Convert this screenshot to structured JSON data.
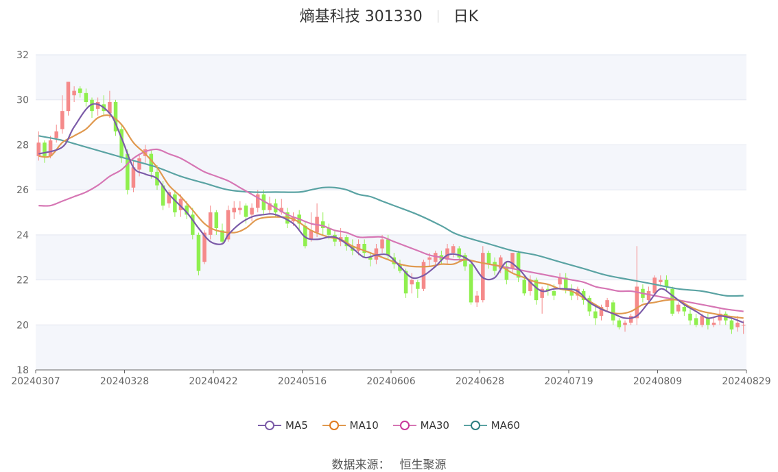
{
  "title": {
    "name": "熵基科技 301330",
    "period": "日K"
  },
  "source": {
    "label": "数据来源：",
    "value": "恒生聚源"
  },
  "colors": {
    "up": "#f58a8a",
    "down": "#8fef4e",
    "ma5": "#7b5ba8",
    "ma10": "#e0994f",
    "ma30": "#d676b4",
    "ma60": "#5aa3a3"
  },
  "chart_data": {
    "type": "candlestick",
    "title": "熵基科技 301330 日K",
    "ylim": [
      18,
      32
    ],
    "yticks": [
      18,
      20,
      22,
      24,
      26,
      28,
      30,
      32
    ],
    "xtick_labels": [
      "20240307",
      "20240328",
      "20240422",
      "20240516",
      "20240606",
      "20240628",
      "20240719",
      "20240809",
      "20240829"
    ],
    "legend": [
      "MA5",
      "MA10",
      "MA30",
      "MA60"
    ],
    "legend_position": "bottom",
    "grid": true,
    "bar_count": 120,
    "candles": [
      [
        27.5,
        28.1,
        27.3,
        28.6
      ],
      [
        28.1,
        27.5,
        27.2,
        28.2
      ],
      [
        27.5,
        28.2,
        27.4,
        28.4
      ],
      [
        28.3,
        28.6,
        28.1,
        28.9
      ],
      [
        28.7,
        29.5,
        28.5,
        30.2
      ],
      [
        29.5,
        30.8,
        29.3,
        30.8
      ],
      [
        30.2,
        30.4,
        29.9,
        30.6
      ],
      [
        30.5,
        30.3,
        30.1,
        30.6
      ],
      [
        30.3,
        29.9,
        29.7,
        30.5
      ],
      [
        30.0,
        29.5,
        29.2,
        30.1
      ],
      [
        29.6,
        29.9,
        29.3,
        30.1
      ],
      [
        29.8,
        29.5,
        29.3,
        30.2
      ],
      [
        29.4,
        29.9,
        29.2,
        30.4
      ],
      [
        29.9,
        28.6,
        28.4,
        30.0
      ],
      [
        28.7,
        27.4,
        27.2,
        28.9
      ],
      [
        27.6,
        26.0,
        25.8,
        27.8
      ],
      [
        26.1,
        27.0,
        25.9,
        27.3
      ],
      [
        26.9,
        27.4,
        26.6,
        27.6
      ],
      [
        27.5,
        27.8,
        27.2,
        28.0
      ],
      [
        27.6,
        26.8,
        26.5,
        27.8
      ],
      [
        26.8,
        26.2,
        26.0,
        27.1
      ],
      [
        26.2,
        25.3,
        25.1,
        26.4
      ],
      [
        25.4,
        25.9,
        25.2,
        26.0
      ],
      [
        25.8,
        25.0,
        24.8,
        26.0
      ],
      [
        25.1,
        25.6,
        24.8,
        25.8
      ],
      [
        25.3,
        24.9,
        24.7,
        25.5
      ],
      [
        24.9,
        24.0,
        23.8,
        25.2
      ],
      [
        24.0,
        22.4,
        22.2,
        24.1
      ],
      [
        22.8,
        24.1,
        22.7,
        24.2
      ],
      [
        24.0,
        25.0,
        23.8,
        25.3
      ],
      [
        25.0,
        24.3,
        24.0,
        25.1
      ],
      [
        24.2,
        23.7,
        23.6,
        24.5
      ],
      [
        23.8,
        25.1,
        23.7,
        25.3
      ],
      [
        25.0,
        25.2,
        24.7,
        25.5
      ],
      [
        25.1,
        25.2,
        24.9,
        25.5
      ],
      [
        25.3,
        24.8,
        24.5,
        25.4
      ],
      [
        24.9,
        25.2,
        24.6,
        25.4
      ],
      [
        25.2,
        25.8,
        25.0,
        26.0
      ],
      [
        25.8,
        25.1,
        24.9,
        26.0
      ],
      [
        25.1,
        25.4,
        24.9,
        25.7
      ],
      [
        25.4,
        25.0,
        24.8,
        25.6
      ],
      [
        25.0,
        25.2,
        24.9,
        25.6
      ],
      [
        25.0,
        24.5,
        24.3,
        25.2
      ],
      [
        24.6,
        24.8,
        24.4,
        25.0
      ],
      [
        24.9,
        24.5,
        24.2,
        25.1
      ],
      [
        24.4,
        23.5,
        23.4,
        24.6
      ],
      [
        23.8,
        24.2,
        23.7,
        25.0
      ],
      [
        24.1,
        24.8,
        23.9,
        25.4
      ],
      [
        24.6,
        24.3,
        24.0,
        25.0
      ],
      [
        24.3,
        24.0,
        23.8,
        24.5
      ],
      [
        24.0,
        23.7,
        23.5,
        24.2
      ],
      [
        23.7,
        23.9,
        23.5,
        24.3
      ],
      [
        23.9,
        23.5,
        23.3,
        24.0
      ],
      [
        23.5,
        23.3,
        23.1,
        23.8
      ],
      [
        23.3,
        23.6,
        23.1,
        23.8
      ],
      [
        23.6,
        23.2,
        23.0,
        23.8
      ],
      [
        23.0,
        22.9,
        22.6,
        23.2
      ],
      [
        22.9,
        23.4,
        22.7,
        23.6
      ],
      [
        23.4,
        23.8,
        23.2,
        24.0
      ],
      [
        23.8,
        23.1,
        22.9,
        24.0
      ],
      [
        23.0,
        22.7,
        22.5,
        23.2
      ],
      [
        22.7,
        22.4,
        22.3,
        22.9
      ],
      [
        22.4,
        21.4,
        21.2,
        22.5
      ],
      [
        21.8,
        22.0,
        21.4,
        22.3
      ],
      [
        21.9,
        21.6,
        21.2,
        22.0
      ],
      [
        21.6,
        22.8,
        21.5,
        22.9
      ],
      [
        22.9,
        23.0,
        22.6,
        23.2
      ],
      [
        22.8,
        23.2,
        22.6,
        23.3
      ],
      [
        23.1,
        22.9,
        22.7,
        23.3
      ],
      [
        22.9,
        23.4,
        22.7,
        23.6
      ],
      [
        23.2,
        23.5,
        23.0,
        23.6
      ],
      [
        23.4,
        23.0,
        22.8,
        23.5
      ],
      [
        23.1,
        22.6,
        22.4,
        23.2
      ],
      [
        22.7,
        21.0,
        20.9,
        22.8
      ],
      [
        21.0,
        21.3,
        20.8,
        21.5
      ],
      [
        21.1,
        23.2,
        21.0,
        23.5
      ],
      [
        23.2,
        22.7,
        22.5,
        23.3
      ],
      [
        22.8,
        22.4,
        22.2,
        23.0
      ],
      [
        22.5,
        23.0,
        22.3,
        23.1
      ],
      [
        22.6,
        22.0,
        21.8,
        22.8
      ],
      [
        22.5,
        23.2,
        22.3,
        23.2
      ],
      [
        23.2,
        22.1,
        21.9,
        23.3
      ],
      [
        22.0,
        21.4,
        21.3,
        22.2
      ],
      [
        21.5,
        22.0,
        21.3,
        22.2
      ],
      [
        22.0,
        21.1,
        20.9,
        22.1
      ],
      [
        21.2,
        21.6,
        20.5,
        21.7
      ],
      [
        21.6,
        21.5,
        21.3,
        21.8
      ],
      [
        21.5,
        21.3,
        21.1,
        21.8
      ],
      [
        21.8,
        22.1,
        21.6,
        22.3
      ],
      [
        22.1,
        21.6,
        21.4,
        22.3
      ],
      [
        21.5,
        21.3,
        21.1,
        21.8
      ],
      [
        21.3,
        21.6,
        21.1,
        21.7
      ],
      [
        21.5,
        21.1,
        20.9,
        21.6
      ],
      [
        21.2,
        20.6,
        20.4,
        21.3
      ],
      [
        20.6,
        20.3,
        20.0,
        20.8
      ],
      [
        20.4,
        20.8,
        20.2,
        20.9
      ],
      [
        20.8,
        21.1,
        20.6,
        21.2
      ],
      [
        21.0,
        20.2,
        20.0,
        21.1
      ],
      [
        20.2,
        19.9,
        19.8,
        20.3
      ],
      [
        20.0,
        20.1,
        19.7,
        20.2
      ],
      [
        20.1,
        20.4,
        20.0,
        20.5
      ],
      [
        20.3,
        21.7,
        20.0,
        23.5
      ],
      [
        21.6,
        21.2,
        21.0,
        21.8
      ],
      [
        21.1,
        21.5,
        21.0,
        21.7
      ],
      [
        21.4,
        22.1,
        21.3,
        22.2
      ],
      [
        21.9,
        22.0,
        21.7,
        22.2
      ],
      [
        22.0,
        21.7,
        21.5,
        22.2
      ],
      [
        21.6,
        20.5,
        20.4,
        21.7
      ],
      [
        20.6,
        20.9,
        20.5,
        21.0
      ],
      [
        20.8,
        20.6,
        20.4,
        20.9
      ],
      [
        20.5,
        20.2,
        20.0,
        20.7
      ],
      [
        20.3,
        20.0,
        19.9,
        20.5
      ],
      [
        20.0,
        20.4,
        19.9,
        20.5
      ],
      [
        20.3,
        20.0,
        19.8,
        20.5
      ],
      [
        20.0,
        20.1,
        19.9,
        20.3
      ],
      [
        20.2,
        20.5,
        20.0,
        20.7
      ],
      [
        20.5,
        20.2,
        20.0,
        20.6
      ],
      [
        20.2,
        19.8,
        19.6,
        20.4
      ],
      [
        19.9,
        20.1,
        19.7,
        20.4
      ],
      [
        20.0,
        20.0,
        19.6,
        20.2
      ]
    ],
    "ma5": [
      [
        0,
        27.6
      ],
      [
        4,
        27.9
      ],
      [
        6,
        28.8
      ],
      [
        9,
        29.8
      ],
      [
        12,
        29.4
      ],
      [
        14,
        28.3
      ],
      [
        16,
        27.0
      ],
      [
        18,
        26.7
      ],
      [
        20,
        26.5
      ],
      [
        22,
        25.8
      ],
      [
        25,
        25.0
      ],
      [
        27,
        24.3
      ],
      [
        29,
        23.7
      ],
      [
        31,
        23.6
      ],
      [
        32,
        24.0
      ],
      [
        34,
        24.5
      ],
      [
        36,
        24.8
      ],
      [
        38,
        24.9
      ],
      [
        40,
        24.9
      ],
      [
        43,
        24.5
      ],
      [
        45,
        23.9
      ],
      [
        47,
        23.8
      ],
      [
        50,
        23.9
      ],
      [
        53,
        23.4
      ],
      [
        55,
        23.0
      ],
      [
        57,
        23.1
      ],
      [
        59,
        23.1
      ],
      [
        61,
        22.6
      ],
      [
        63,
        22.1
      ],
      [
        65,
        22.2
      ],
      [
        67,
        22.6
      ],
      [
        69,
        23.1
      ],
      [
        71,
        23.1
      ],
      [
        73,
        22.8
      ],
      [
        75,
        22.1
      ],
      [
        77,
        22.1
      ],
      [
        79,
        22.8
      ],
      [
        81,
        22.5
      ],
      [
        83,
        21.9
      ],
      [
        85,
        21.5
      ],
      [
        87,
        21.6
      ],
      [
        89,
        21.6
      ],
      [
        91,
        21.5
      ],
      [
        93,
        21.0
      ],
      [
        95,
        20.7
      ],
      [
        97,
        20.5
      ],
      [
        99,
        20.3
      ],
      [
        101,
        20.4
      ],
      [
        103,
        21.0
      ],
      [
        105,
        21.6
      ],
      [
        107,
        21.3
      ],
      [
        109,
        20.9
      ],
      [
        111,
        20.6
      ],
      [
        113,
        20.3
      ],
      [
        115,
        20.4
      ],
      [
        117,
        20.3
      ],
      [
        119,
        20.1
      ]
    ],
    "ma10": [
      [
        0,
        27.5
      ],
      [
        2,
        27.5
      ],
      [
        4,
        28.1
      ],
      [
        6,
        28.4
      ],
      [
        8,
        28.7
      ],
      [
        10,
        29.2
      ],
      [
        12,
        29.3
      ],
      [
        14,
        28.9
      ],
      [
        16,
        28.1
      ],
      [
        18,
        27.6
      ],
      [
        20,
        27.0
      ],
      [
        22,
        26.2
      ],
      [
        24,
        25.7
      ],
      [
        26,
        25.1
      ],
      [
        28,
        24.5
      ],
      [
        30,
        24.2
      ],
      [
        33,
        24.1
      ],
      [
        35,
        24.3
      ],
      [
        37,
        24.7
      ],
      [
        40,
        24.8
      ],
      [
        43,
        24.7
      ],
      [
        46,
        24.2
      ],
      [
        49,
        23.9
      ],
      [
        51,
        23.8
      ],
      [
        53,
        23.5
      ],
      [
        55,
        23.3
      ],
      [
        57,
        23.1
      ],
      [
        59,
        22.9
      ],
      [
        61,
        22.7
      ],
      [
        63,
        22.6
      ],
      [
        66,
        22.6
      ],
      [
        68,
        22.7
      ],
      [
        70,
        22.7
      ],
      [
        72,
        22.9
      ],
      [
        74,
        22.8
      ],
      [
        76,
        22.7
      ],
      [
        78,
        22.6
      ],
      [
        80,
        22.3
      ],
      [
        82,
        22.1
      ],
      [
        84,
        21.9
      ],
      [
        86,
        21.8
      ],
      [
        88,
        21.6
      ],
      [
        90,
        21.5
      ],
      [
        92,
        21.2
      ],
      [
        94,
        20.9
      ],
      [
        96,
        20.6
      ],
      [
        98,
        20.5
      ],
      [
        100,
        20.6
      ],
      [
        102,
        20.9
      ],
      [
        104,
        21.0
      ],
      [
        106,
        21.1
      ],
      [
        108,
        21.1
      ],
      [
        110,
        20.8
      ],
      [
        112,
        20.6
      ],
      [
        114,
        20.5
      ],
      [
        116,
        20.4
      ],
      [
        119,
        20.3
      ]
    ],
    "ma30": [
      [
        0,
        25.3
      ],
      [
        2,
        25.3
      ],
      [
        4,
        25.5
      ],
      [
        6,
        25.7
      ],
      [
        8,
        25.9
      ],
      [
        10,
        26.2
      ],
      [
        12,
        26.6
      ],
      [
        14,
        26.9
      ],
      [
        16,
        27.4
      ],
      [
        18,
        27.7
      ],
      [
        20,
        27.8
      ],
      [
        22,
        27.6
      ],
      [
        24,
        27.4
      ],
      [
        26,
        27.1
      ],
      [
        28,
        26.8
      ],
      [
        30,
        26.6
      ],
      [
        32,
        26.4
      ],
      [
        34,
        26.1
      ],
      [
        36,
        25.8
      ],
      [
        38,
        25.5
      ],
      [
        40,
        25.2
      ],
      [
        42,
        24.9
      ],
      [
        44,
        24.7
      ],
      [
        46,
        24.5
      ],
      [
        48,
        24.4
      ],
      [
        50,
        24.2
      ],
      [
        52,
        24.1
      ],
      [
        54,
        23.9
      ],
      [
        56,
        23.9
      ],
      [
        58,
        23.9
      ],
      [
        60,
        23.7
      ],
      [
        62,
        23.5
      ],
      [
        64,
        23.3
      ],
      [
        66,
        23.1
      ],
      [
        68,
        23.0
      ],
      [
        70,
        22.9
      ],
      [
        72,
        22.9
      ],
      [
        74,
        22.8
      ],
      [
        76,
        22.7
      ],
      [
        78,
        22.6
      ],
      [
        80,
        22.5
      ],
      [
        82,
        22.4
      ],
      [
        84,
        22.3
      ],
      [
        86,
        22.2
      ],
      [
        88,
        22.1
      ],
      [
        90,
        22.0
      ],
      [
        92,
        21.9
      ],
      [
        94,
        21.7
      ],
      [
        96,
        21.6
      ],
      [
        98,
        21.5
      ],
      [
        100,
        21.5
      ],
      [
        102,
        21.4
      ],
      [
        104,
        21.3
      ],
      [
        106,
        21.2
      ],
      [
        108,
        21.1
      ],
      [
        110,
        21.0
      ],
      [
        112,
        20.9
      ],
      [
        114,
        20.8
      ],
      [
        116,
        20.7
      ],
      [
        119,
        20.6
      ]
    ],
    "ma60": [
      [
        0,
        28.4
      ],
      [
        4,
        28.2
      ],
      [
        8,
        27.9
      ],
      [
        12,
        27.6
      ],
      [
        16,
        27.3
      ],
      [
        20,
        27.0
      ],
      [
        24,
        26.6
      ],
      [
        28,
        26.3
      ],
      [
        32,
        26.0
      ],
      [
        36,
        25.9
      ],
      [
        40,
        25.9
      ],
      [
        44,
        25.9
      ],
      [
        46,
        26.0
      ],
      [
        48,
        26.1
      ],
      [
        50,
        26.1
      ],
      [
        52,
        26.0
      ],
      [
        54,
        25.8
      ],
      [
        56,
        25.7
      ],
      [
        58,
        25.5
      ],
      [
        60,
        25.3
      ],
      [
        64,
        24.9
      ],
      [
        68,
        24.4
      ],
      [
        70,
        24.1
      ],
      [
        72,
        23.9
      ],
      [
        76,
        23.6
      ],
      [
        80,
        23.3
      ],
      [
        84,
        23.1
      ],
      [
        88,
        22.8
      ],
      [
        92,
        22.5
      ],
      [
        96,
        22.2
      ],
      [
        100,
        22.0
      ],
      [
        104,
        21.8
      ],
      [
        108,
        21.6
      ],
      [
        112,
        21.5
      ],
      [
        116,
        21.3
      ],
      [
        119,
        21.3
      ]
    ]
  }
}
